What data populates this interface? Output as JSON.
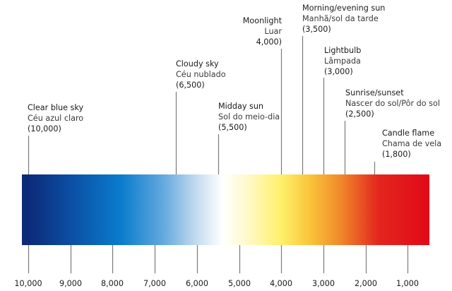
{
  "spectrum": {
    "gradient_stops": [
      {
        "k": 10000,
        "color": "#0d2a78"
      },
      {
        "k": 9000,
        "color": "#0b4ea3"
      },
      {
        "k": 7800,
        "color": "#0a7ccc"
      },
      {
        "k": 6800,
        "color": "#63a9de"
      },
      {
        "k": 6000,
        "color": "#c5dcf0"
      },
      {
        "k": 5400,
        "color": "#ffffff"
      },
      {
        "k": 4800,
        "color": "#fff9c9"
      },
      {
        "k": 4000,
        "color": "#fff06a"
      },
      {
        "k": 3300,
        "color": "#f9c33a"
      },
      {
        "k": 2600,
        "color": "#f08a2a"
      },
      {
        "k": 1700,
        "color": "#e3261e"
      },
      {
        "k": 550,
        "color": "#e20a17"
      }
    ]
  },
  "axis": {
    "ticks": [
      {
        "value": 10000,
        "label": "10,000"
      },
      {
        "value": 9000,
        "label": "9,000"
      },
      {
        "value": 8000,
        "label": "8,000"
      },
      {
        "value": 7000,
        "label": "7,000"
      },
      {
        "value": 6000,
        "label": "6,000"
      },
      {
        "value": 5000,
        "label": "5,000"
      },
      {
        "value": 4000,
        "label": "4,000"
      },
      {
        "value": 3000,
        "label": "3,000"
      },
      {
        "value": 2000,
        "label": "2,000"
      },
      {
        "value": 1000,
        "label": "1,000"
      }
    ]
  },
  "sources": [
    {
      "id": "clear-blue-sky",
      "value": 10000,
      "en": "Clear blue sky",
      "pt": "Céu azul claro",
      "k": "(10,000)"
    },
    {
      "id": "cloudy-sky",
      "value": 6500,
      "en": "Cloudy sky",
      "pt": "Céu nublado",
      "k": "(6,500)"
    },
    {
      "id": "midday-sun",
      "value": 5500,
      "en": "Midday sun",
      "pt": "Sol do meio-dia",
      "k": "(5,500)"
    },
    {
      "id": "moonlight",
      "value": 4000,
      "en": "Moonlight",
      "pt": "Luar",
      "k": "4,000)"
    },
    {
      "id": "morning-evening-sun",
      "value": 3500,
      "en": "Morning/evening sun",
      "pt": "Manhã/sol da tarde",
      "k": "(3,500)"
    },
    {
      "id": "lightbulb",
      "value": 3000,
      "en": "Lightbulb",
      "pt": "Lâmpada",
      "k": "(3,000)"
    },
    {
      "id": "sunrise-sunset",
      "value": 2500,
      "en": "Sunrise/sunset",
      "pt": "Nascer do sol/Pôr do sol",
      "k": "(2,500)"
    },
    {
      "id": "candle-flame",
      "value": 1800,
      "en": "Candle flame",
      "pt": "Chama de vela",
      "k": "(1,800)"
    }
  ]
}
